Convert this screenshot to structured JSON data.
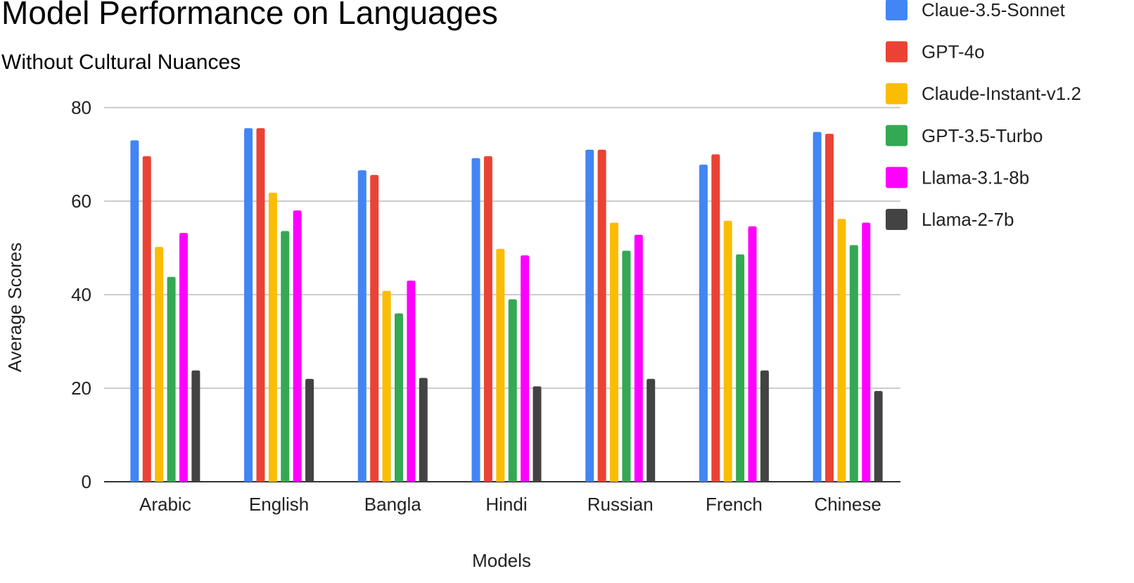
{
  "chart_data": {
    "type": "bar",
    "title": "Model Performance on Languages",
    "subtitle": "Without Cultural Nuances",
    "xlabel": "Models",
    "ylabel": "Average Scores",
    "ylim": [
      0,
      80
    ],
    "yticks": [
      "0",
      "20",
      "40",
      "60",
      "80"
    ],
    "grid": true,
    "legend_position": "top-right",
    "categories": [
      "Arabic",
      "English",
      "Bangla",
      "Hindi",
      "Russian",
      "French",
      "Chinese"
    ],
    "series": [
      {
        "name": "Claue-3.5-Sonnet",
        "color": "#4285f4",
        "values": [
          73.0,
          75.6,
          66.6,
          69.2,
          71.0,
          67.8,
          74.8
        ]
      },
      {
        "name": "GPT-4o",
        "color": "#ea4335",
        "values": [
          69.6,
          75.6,
          65.6,
          69.6,
          71.0,
          70.0,
          74.4
        ]
      },
      {
        "name": "Claude-Instant-v1.2",
        "color": "#fbbc04",
        "values": [
          50.2,
          61.8,
          40.8,
          49.8,
          55.4,
          55.8,
          56.2
        ]
      },
      {
        "name": "GPT-3.5-Turbo",
        "color": "#34a853",
        "values": [
          43.8,
          53.6,
          36.0,
          39.0,
          49.4,
          48.6,
          50.6
        ]
      },
      {
        "name": "Llama-3.1-8b",
        "color": "#ff00ff",
        "values": [
          53.2,
          58.0,
          43.0,
          48.4,
          52.8,
          54.6,
          55.4
        ]
      },
      {
        "name": "Llama-2-7b",
        "color": "#434343",
        "values": [
          23.8,
          22.0,
          22.2,
          20.4,
          22.0,
          23.8,
          19.4
        ]
      }
    ]
  }
}
